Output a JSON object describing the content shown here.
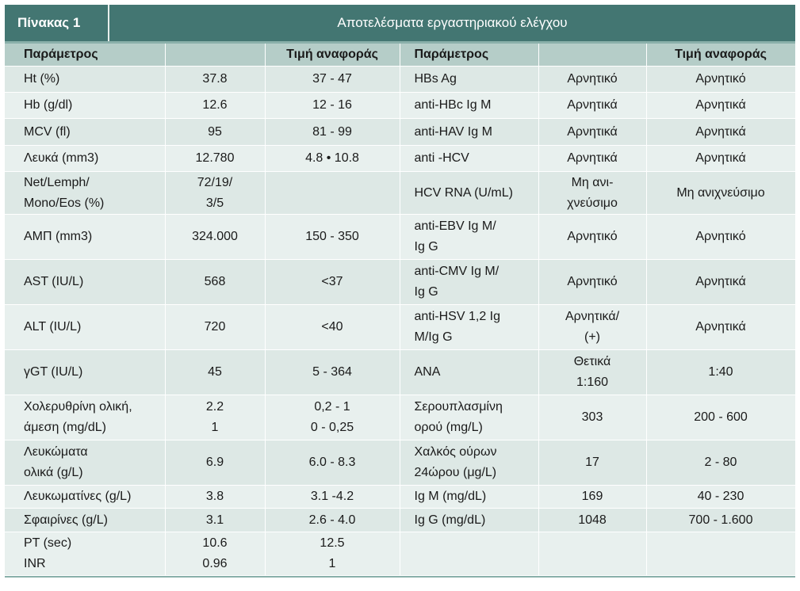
{
  "header": {
    "label": "Πίνακας 1",
    "title": "Αποτελέσματα εργαστηριακού ελέγχου"
  },
  "columns": [
    "Παράμετρος",
    "",
    "Τιμή αναφοράς",
    "Παράμετρος",
    "",
    "Τιμή αναφοράς"
  ],
  "rows": [
    [
      "Ht (%)",
      "37.8",
      "37 - 47",
      "HBs Ag",
      "Αρνητικό",
      "Αρνητικό"
    ],
    [
      "Hb (g/dl)",
      "12.6",
      "12 - 16",
      "anti-HBc Ig M",
      "Αρνητικά",
      "Αρνητικά"
    ],
    [
      "MCV (fl)",
      "95",
      "81 - 99",
      "anti-HAV Ig M",
      "Αρνητικά",
      "Αρνητικά"
    ],
    [
      "Λευκά (mm3)",
      "12.780",
      "4.8 • 10.8",
      "anti -HCV",
      "Αρνητικά",
      "Αρνητικά"
    ],
    [
      "Net/Lemph/\nMono/Eos (%)",
      "72/19/\n3/5",
      "",
      "HCV RNA (U/mL)",
      "Μη ανι-\nχνεύσιμο",
      "Μη ανιχνεύσιμο"
    ],
    [
      "ΑΜΠ (mm3)",
      "324.000",
      "150 - 350",
      "anti-EBV Ig M/\nIg G",
      "Αρνητικό",
      "Αρνητικό"
    ],
    [
      "AST (IU/L)",
      "568",
      "<37",
      "anti-CMV Ig M/\nIg G",
      "Αρνητικό",
      "Αρνητικά"
    ],
    [
      "ALT (IU/L)",
      "720",
      "<40",
      "anti-HSV 1,2 Ig\nM/Ig G",
      "Αρνητικά/\n(+)",
      "Αρνητικά"
    ],
    [
      "γGT (IU/L)",
      "45",
      "5 - 364",
      "ANA",
      "Θετικά\n1:160",
      "1:40"
    ],
    [
      "Χολερυθρίνη ολική,\nάμεση (mg/dL)",
      "2.2\n1",
      "0,2 - 1\n0 - 0,25",
      "Σερουπλασμίνη\nορού (mg/L)",
      "303",
      "200 - 600"
    ],
    [
      "Λευκώματα\nολικά (g/L)",
      "6.9",
      "6.0 - 8.3",
      "Χαλκός ούρων\n24ώρου (μg/L)",
      "17",
      "2 - 80"
    ],
    [
      "Λευκωματίνες (g/L)",
      "3.8",
      "3.1 -4.2",
      "Ig M (mg/dL)",
      "169",
      "40 - 230"
    ],
    [
      "Σφαιρίνες (g/L)",
      "3.1",
      "2.6 - 4.0",
      "Ig G (mg/dL)",
      "1048",
      "700 - 1.600"
    ],
    [
      "PT (sec)\nINR",
      "10.6\n0.96",
      "12.5\n1",
      "",
      "",
      ""
    ]
  ]
}
